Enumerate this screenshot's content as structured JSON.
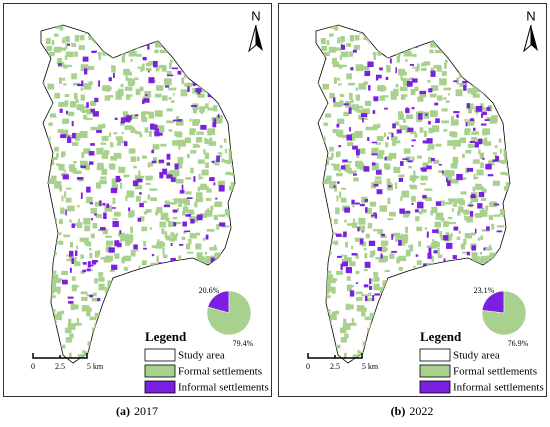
{
  "panels": [
    {
      "north": "N",
      "legend": {
        "title": "Legend",
        "items": [
          {
            "label": "Study area",
            "color": "#ffffff"
          },
          {
            "label": "Formal settlements",
            "color": "#a9d18e"
          },
          {
            "label": "Informal settlements",
            "color": "#7b1fe0"
          }
        ]
      },
      "scale": [
        "0",
        "2.5",
        "5 km"
      ],
      "pie": {
        "values": [
          20.6,
          79.4
        ],
        "value_labels": [
          "20.6%",
          "79.4%"
        ],
        "colors": [
          "#7b1fe0",
          "#a9d18e"
        ]
      },
      "caption": {
        "letter": "(a)",
        "year": "2017"
      }
    },
    {
      "north": "N",
      "legend": {
        "title": "Legend",
        "items": [
          {
            "label": "Study area",
            "color": "#ffffff"
          },
          {
            "label": "Formal settlements",
            "color": "#a9d18e"
          },
          {
            "label": "Informal settlements",
            "color": "#7b1fe0"
          }
        ]
      },
      "scale": [
        "0",
        "2.5",
        "5 km"
      ],
      "pie": {
        "values": [
          23.1,
          76.9
        ],
        "value_labels": [
          "23.1%",
          "76.9%"
        ],
        "colors": [
          "#7b1fe0",
          "#a9d18e"
        ]
      },
      "caption": {
        "letter": "(b)",
        "year": "2022"
      }
    }
  ]
}
